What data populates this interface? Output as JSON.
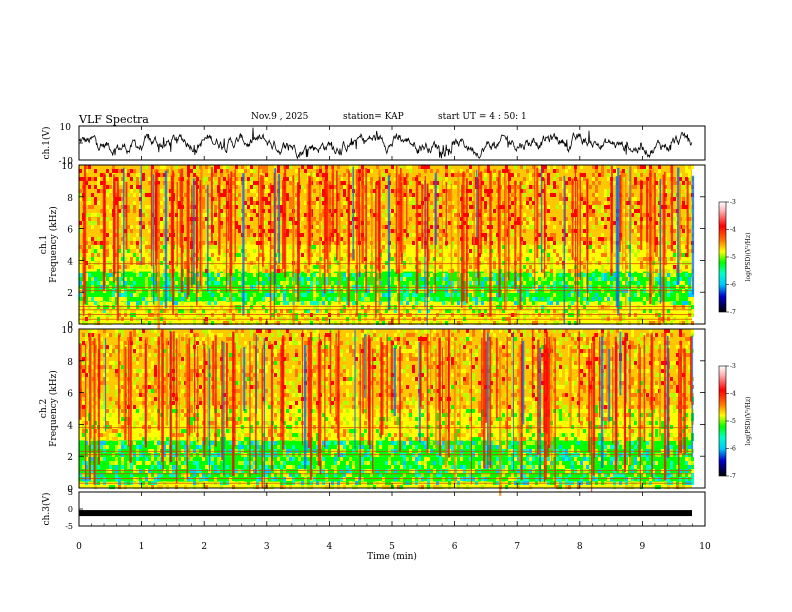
{
  "header": {
    "title": "VLF Spectra",
    "date": "Nov.9 , 2025",
    "station": "station= KAP",
    "start": "start UT = 4 : 50: 1"
  },
  "colors": {
    "scale": [
      "#000000",
      "#0000c8",
      "#0064ff",
      "#00c8ff",
      "#00ffc8",
      "#00ff00",
      "#b4ff00",
      "#ffff00",
      "#ffc800",
      "#ff7800",
      "#ff0000",
      "#ffb4b4",
      "#ffffff"
    ]
  },
  "chart_data": [
    {
      "type": "line",
      "name": "ch1-waveform",
      "ylabel": "ch.1(V)",
      "ylim": [
        -10,
        10
      ],
      "yticks": [
        "10",
        "-10"
      ],
      "xlim": [
        0,
        10
      ],
      "description_values": "noisy waveform oscillating approx between -7 and 8 V over 0-9.8 min"
    },
    {
      "type": "heatmap",
      "name": "ch1-spectrogram",
      "ylabel_channel": "ch.1",
      "ylabel": "Frequency (kHz)",
      "ylim": [
        0,
        10
      ],
      "yticks": [
        "0",
        "2",
        "4",
        "6",
        "8",
        "10"
      ],
      "xlim": [
        0,
        10
      ],
      "colorbar": {
        "label": "log(PSD)(V²/Hz)",
        "ticks": [
          "-3",
          "-4",
          "-5",
          "-6",
          "-7"
        ],
        "range": [
          -7,
          -3
        ]
      },
      "bands": [
        {
          "from_khz": 0.0,
          "to_khz": 0.8,
          "level": -4.5
        },
        {
          "from_khz": 0.8,
          "to_khz": 1.4,
          "level": -4.8
        },
        {
          "from_khz": 1.4,
          "to_khz": 3.3,
          "level": -5.3
        },
        {
          "from_khz": 3.3,
          "to_khz": 5.0,
          "level": -4.5
        },
        {
          "from_khz": 5.0,
          "to_khz": 10.0,
          "level": -4.2
        }
      ]
    },
    {
      "type": "heatmap",
      "name": "ch2-spectrogram",
      "ylabel_channel": "ch.2",
      "ylabel": "Frequency (kHz)",
      "ylim": [
        0,
        10
      ],
      "yticks": [
        "0",
        "2",
        "4",
        "6",
        "8",
        "10"
      ],
      "xlim": [
        0,
        10
      ],
      "colorbar": {
        "label": "log(PSD)(V²/Hz)",
        "ticks": [
          "-3",
          "-4",
          "-5",
          "-6",
          "-7"
        ],
        "range": [
          -7,
          -3
        ]
      },
      "bands": [
        {
          "from_khz": 0.0,
          "to_khz": 0.4,
          "level": -4.6
        },
        {
          "from_khz": 0.4,
          "to_khz": 2.0,
          "level": -5.3
        },
        {
          "from_khz": 2.0,
          "to_khz": 3.0,
          "level": -5.4
        },
        {
          "from_khz": 3.0,
          "to_khz": 5.0,
          "level": -4.7
        },
        {
          "from_khz": 5.0,
          "to_khz": 10.0,
          "level": -4.4
        }
      ]
    },
    {
      "type": "line",
      "name": "ch3-signal",
      "ylabel": "ch.3(V)",
      "ylim": [
        -5,
        5
      ],
      "yticks": [
        "5",
        "0",
        "-5"
      ],
      "xlim": [
        0,
        10
      ],
      "level": -1.2
    }
  ],
  "xaxis": {
    "label": "Time (min)",
    "ticks": [
      "0",
      "1",
      "2",
      "3",
      "4",
      "5",
      "6",
      "7",
      "8",
      "9",
      "10"
    ]
  }
}
